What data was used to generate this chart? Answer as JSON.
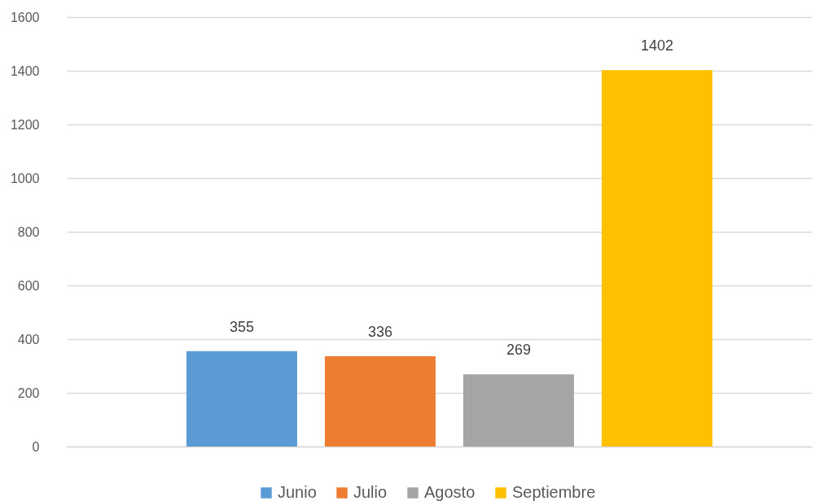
{
  "chart_data": {
    "type": "bar",
    "categories": [
      null
    ],
    "series": [
      {
        "name": "Junio",
        "color": "#5b9bd5",
        "values": [
          355
        ]
      },
      {
        "name": "Julio",
        "color": "#ed7d31",
        "values": [
          336
        ]
      },
      {
        "name": "Agosto",
        "color": "#a5a5a5",
        "values": [
          269
        ]
      },
      {
        "name": "Septiembre",
        "color": "#ffc000",
        "values": [
          1402
        ]
      }
    ],
    "ylim": [
      0,
      1600
    ],
    "yticks": [
      0,
      200,
      400,
      600,
      800,
      1000,
      1200,
      1400,
      1600
    ],
    "grid": "y",
    "legend": "bottom",
    "data_labels": true,
    "tick_labels": "y"
  }
}
